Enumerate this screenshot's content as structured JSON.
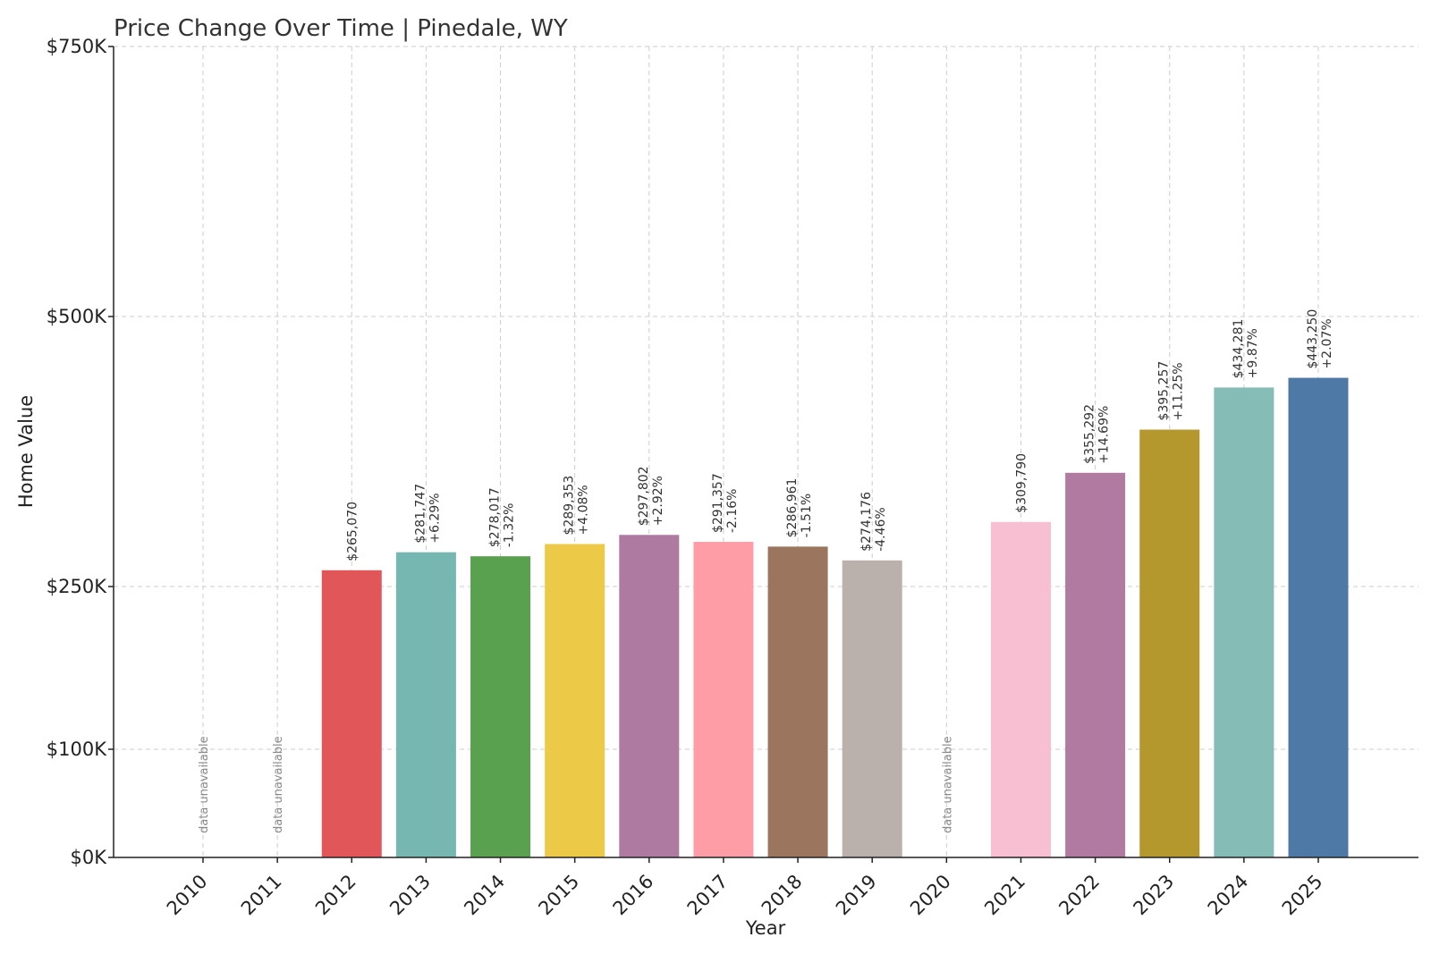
{
  "chart_data": {
    "type": "bar",
    "title": "Price Change Over Time | Pinedale, WY",
    "xlabel": "Year",
    "ylabel": "Home Value",
    "ylim": [
      0,
      750000
    ],
    "y_ticks": [
      {
        "value": 0,
        "label": "$0K"
      },
      {
        "value": 100000,
        "label": "$100K"
      },
      {
        "value": 250000,
        "label": "$250K"
      },
      {
        "value": 500000,
        "label": "$500K"
      },
      {
        "value": 750000,
        "label": "$750K"
      }
    ],
    "grid": true,
    "unavailable_text": "data unavailable",
    "bars": [
      {
        "year": "2010",
        "value": null,
        "value_label": "",
        "change_label": "",
        "color": ""
      },
      {
        "year": "2011",
        "value": null,
        "value_label": "",
        "change_label": "",
        "color": ""
      },
      {
        "year": "2012",
        "value": 265070,
        "value_label": "$265,070",
        "change_label": "",
        "color": "#e15759"
      },
      {
        "year": "2013",
        "value": 281747,
        "value_label": "$281,747",
        "change_label": "+6.29%",
        "color": "#76b7b2"
      },
      {
        "year": "2014",
        "value": 278017,
        "value_label": "$278,017",
        "change_label": "-1.32%",
        "color": "#59a14f"
      },
      {
        "year": "2015",
        "value": 289353,
        "value_label": "$289,353",
        "change_label": "+4.08%",
        "color": "#edc948"
      },
      {
        "year": "2016",
        "value": 297802,
        "value_label": "$297,802",
        "change_label": "+2.92%",
        "color": "#af7aa1"
      },
      {
        "year": "2017",
        "value": 291357,
        "value_label": "$291,357",
        "change_label": "-2.16%",
        "color": "#ff9da7"
      },
      {
        "year": "2018",
        "value": 286961,
        "value_label": "$286,961",
        "change_label": "-1.51%",
        "color": "#9c755f"
      },
      {
        "year": "2019",
        "value": 274176,
        "value_label": "$274,176",
        "change_label": "-4.46%",
        "color": "#bab0ac"
      },
      {
        "year": "2020",
        "value": null,
        "value_label": "",
        "change_label": "",
        "color": ""
      },
      {
        "year": "2021",
        "value": 309790,
        "value_label": "$309,790",
        "change_label": "",
        "color": "#f8bfd2"
      },
      {
        "year": "2022",
        "value": 355292,
        "value_label": "$355,292",
        "change_label": "+14.69%",
        "color": "#b07aa1"
      },
      {
        "year": "2023",
        "value": 395257,
        "value_label": "$395,257",
        "change_label": "+11.25%",
        "color": "#b5982d"
      },
      {
        "year": "2024",
        "value": 434281,
        "value_label": "$434,281",
        "change_label": "+9.87%",
        "color": "#86bcb6"
      },
      {
        "year": "2025",
        "value": 443250,
        "value_label": "$443,250",
        "change_label": "+2.07%",
        "color": "#4e79a7"
      }
    ]
  }
}
